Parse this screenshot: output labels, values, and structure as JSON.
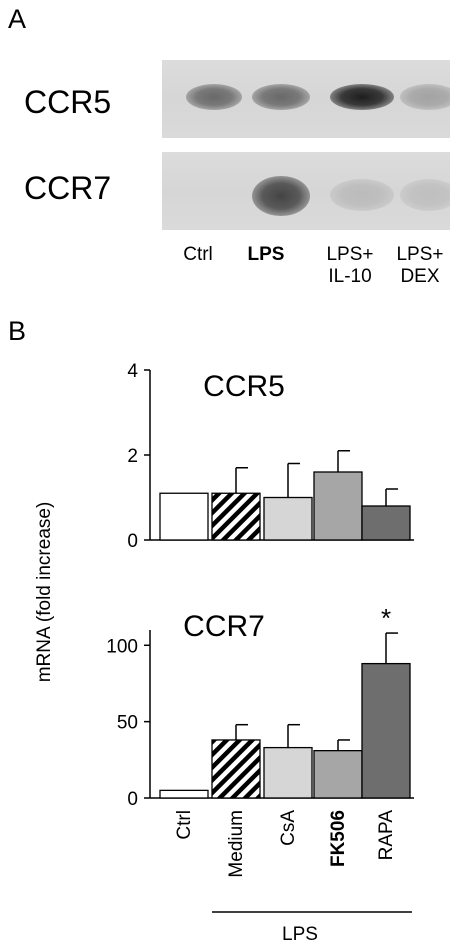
{
  "panel_a": {
    "letter": "A",
    "blot_rows": [
      {
        "label": "CCR5",
        "bands": [
          0.55,
          0.55,
          0.95,
          0.25
        ]
      },
      {
        "label": "CCR7",
        "bands": [
          0.0,
          0.75,
          0.12,
          0.1
        ]
      }
    ],
    "lanes": [
      {
        "line1": "Ctrl",
        "line2": "",
        "bold": false
      },
      {
        "line1": "LPS",
        "line2": "",
        "bold": true
      },
      {
        "line1": "LPS+",
        "line2": "IL-10",
        "bold": false
      },
      {
        "line1": "LPS+",
        "line2": "DEX",
        "bold": false
      }
    ]
  },
  "panel_b": {
    "letter": "B",
    "ylabel": "mRNA (fold increase)",
    "group_label": "LPS",
    "significance_marker": "*",
    "significance_index": 4
  },
  "chart_data": [
    {
      "type": "bar",
      "title": "CCR5",
      "categories": [
        "Ctrl",
        "Medium",
        "CsA",
        "FK506",
        "RAPA"
      ],
      "values": [
        1.1,
        1.1,
        1.0,
        1.6,
        0.8
      ],
      "errors": [
        0,
        0.6,
        0.8,
        0.5,
        0.4
      ],
      "ylim": [
        0,
        4
      ],
      "yticks": [
        "0",
        "2",
        "4"
      ],
      "fills": [
        "#ffffff",
        "hatch",
        "#d6d6d6",
        "#a6a6a6",
        "#6e6e6e"
      ]
    },
    {
      "type": "bar",
      "title": "CCR7",
      "categories": [
        "Ctrl",
        "Medium",
        "CsA",
        "FK506",
        "RAPA"
      ],
      "values": [
        5,
        38,
        33,
        31,
        88
      ],
      "errors": [
        0,
        10,
        15,
        7,
        20
      ],
      "ylim": [
        0,
        110
      ],
      "yticks": [
        "0",
        "50",
        "100"
      ],
      "fills": [
        "#ffffff",
        "hatch",
        "#d6d6d6",
        "#a6a6a6",
        "#6e6e6e"
      ]
    }
  ]
}
